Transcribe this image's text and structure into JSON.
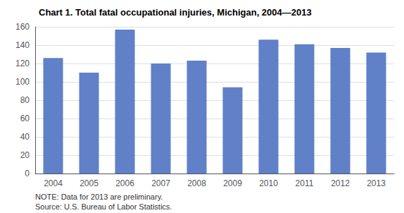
{
  "chart_data": {
    "type": "bar",
    "title": "Chart 1. Total fatal occupational injuries, Michigan, 2004—2013",
    "categories": [
      "2004",
      "2005",
      "2006",
      "2007",
      "2008",
      "2009",
      "2010",
      "2011",
      "2012",
      "2013"
    ],
    "values": [
      126,
      110,
      157,
      120,
      123,
      94,
      146,
      141,
      137,
      132
    ],
    "color": "#6080c8",
    "ylim": [
      0,
      160
    ],
    "yticks": [
      0,
      20,
      40,
      60,
      80,
      100,
      120,
      140,
      160
    ],
    "grid": true,
    "annotations": [
      "NOTE: Data for 2013 are preliminary.",
      "Source: U.S. Bureau of Labor Statistics."
    ]
  }
}
